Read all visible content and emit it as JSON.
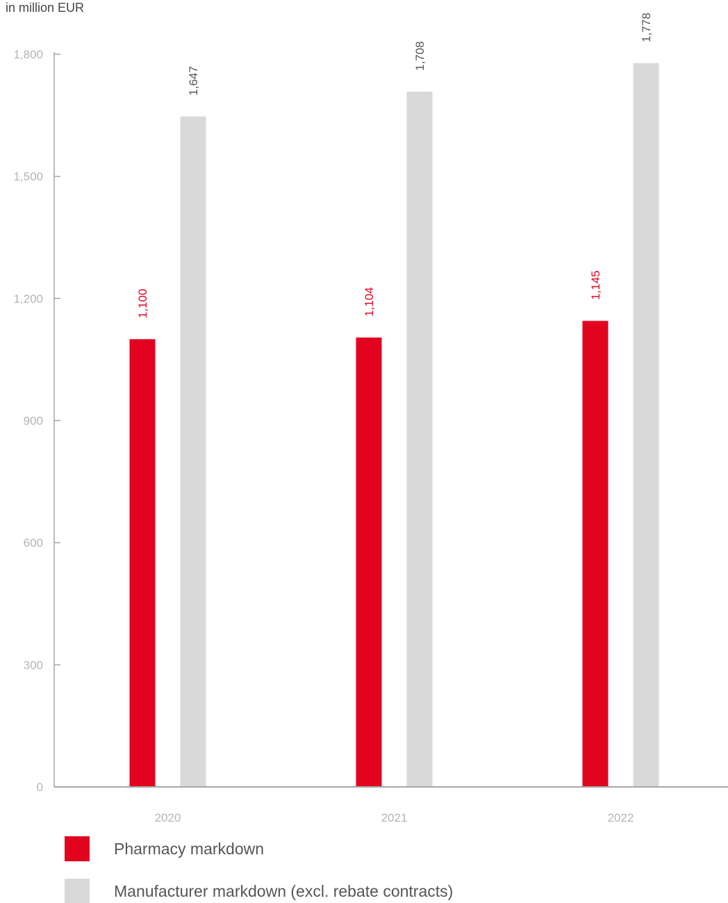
{
  "chart_data": {
    "type": "bar",
    "unit_label": "in million EUR",
    "categories": [
      "2020",
      "2021",
      "2022"
    ],
    "series": [
      {
        "name": "Pharmacy markdown",
        "color": "#e2041f",
        "values": [
          1100,
          1104,
          1145
        ],
        "labels": [
          "1,100",
          "1,104",
          "1,145"
        ]
      },
      {
        "name": "Manufacturer markdown (excl. rebate contracts)",
        "color": "#d9d9d9",
        "values": [
          1647,
          1708,
          1778
        ],
        "labels": [
          "1,647",
          "1,708",
          "1,778"
        ]
      }
    ],
    "ylim": [
      0,
      1800
    ],
    "yticks": [
      0,
      300,
      600,
      900,
      1200,
      1500,
      1800
    ],
    "ytick_labels": [
      "0",
      "300",
      "600",
      "900",
      "1,200",
      "1,500",
      "1,800"
    ],
    "grid": false,
    "legend_position": "bottom-left",
    "label_colors": {
      "pharmacy": "#e2041f",
      "manufacturer": "#555555"
    },
    "axis_color": "#a6a6a6"
  }
}
